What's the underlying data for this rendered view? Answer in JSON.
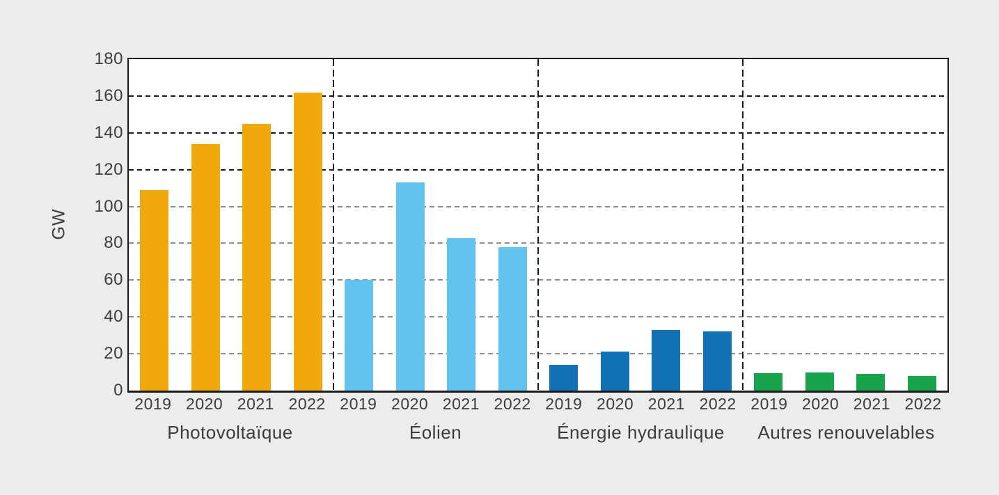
{
  "chart_data": {
    "type": "bar",
    "title": "",
    "xlabel": "",
    "ylabel": "GW",
    "ylim": [
      0,
      180
    ],
    "yticks": [
      0,
      20,
      40,
      60,
      80,
      100,
      120,
      140,
      160,
      180
    ],
    "grid": "horizontal dashed gridlines; dashed vertical separators between groups",
    "legend_position": "none",
    "categories": [
      "2019",
      "2020",
      "2021",
      "2022"
    ],
    "series": [
      {
        "name": "Photovoltaïque",
        "color": "#f0a80d",
        "values": [
          109,
          134,
          145,
          162
        ]
      },
      {
        "name": "Éolien",
        "color": "#62c3ee",
        "values": [
          60,
          113,
          83,
          78
        ]
      },
      {
        "name": "Énergie hydraulique",
        "color": "#1272b5",
        "values": [
          14,
          21,
          33,
          32
        ]
      },
      {
        "name": "Autres renouvelables",
        "color": "#1aa34d",
        "values": [
          9.5,
          10,
          9,
          8
        ]
      }
    ],
    "gridline_style": {
      "dark_color": "#1a1a1a",
      "light_color": "#8f8f8f",
      "dark_for_values_at_or_above": 120
    },
    "colors": {
      "page_background": "#ececec",
      "plot_background": "#ffffff",
      "axis_border": "#1a1a1a",
      "text": "#3c3c3c"
    }
  }
}
